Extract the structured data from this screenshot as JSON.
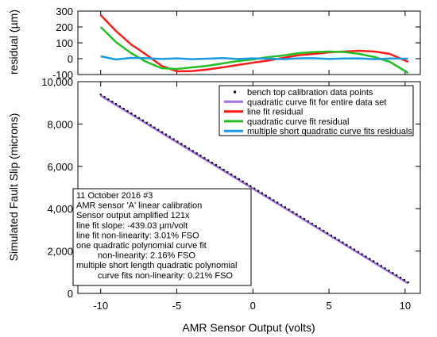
{
  "chart_data": [
    {
      "id": "residual",
      "type": "line",
      "ylabel": "residual (µm)",
      "xlim": [
        -11.5,
        11
      ],
      "ylim": [
        -100,
        300
      ],
      "yticks": [
        -100,
        0,
        100,
        200,
        300
      ],
      "grid": false,
      "series": [
        {
          "name": "line fit residual",
          "color": "#ff1a1a",
          "x": [
            -10,
            -9,
            -8,
            -7,
            -6,
            -5,
            -4,
            -3,
            -2,
            -1,
            0,
            1,
            2,
            3,
            4,
            5,
            6,
            7,
            8,
            9,
            10.2
          ],
          "y": [
            275,
            175,
            90,
            25,
            -45,
            -80,
            -78,
            -68,
            -55,
            -40,
            -25,
            -12,
            5,
            22,
            30,
            40,
            45,
            50,
            45,
            30,
            -20
          ]
        },
        {
          "name": "quadratic curve fit residual",
          "color": "#22c022",
          "x": [
            -10,
            -9,
            -8,
            -7,
            -6,
            -5,
            -4,
            -3,
            -2,
            -1,
            0,
            1,
            2,
            3,
            4,
            5,
            6,
            7,
            8,
            9,
            10.2
          ],
          "y": [
            200,
            105,
            35,
            -20,
            -60,
            -65,
            -55,
            -45,
            -30,
            -15,
            -5,
            10,
            20,
            35,
            42,
            45,
            42,
            30,
            10,
            -20,
            -90
          ]
        },
        {
          "name": "multiple short quadratic curve fits residuals",
          "color": "#1a9ae0",
          "x": [
            -10,
            -9,
            -8,
            -7,
            -6,
            -5,
            -4,
            -3,
            -2,
            -1,
            0,
            1,
            2,
            3,
            4,
            5,
            6,
            7,
            8,
            9,
            10.2
          ],
          "y": [
            15,
            -5,
            5,
            3,
            -2,
            2,
            -3,
            0,
            4,
            -2,
            2,
            0,
            -3,
            2,
            3,
            -2,
            1,
            2,
            -3,
            1,
            0
          ]
        }
      ]
    },
    {
      "id": "main",
      "type": "line",
      "xlabel": "AMR Sensor Output (volts)",
      "ylabel": "Simulated Fault Slip (microns)",
      "xlim": [
        -11.5,
        11
      ],
      "ylim": [
        0,
        10000
      ],
      "xticks": [
        -10,
        -5,
        0,
        5,
        10
      ],
      "yticks": [
        0,
        2000,
        4000,
        6000,
        8000,
        10000
      ],
      "grid": false,
      "legend_position": "top-right",
      "series": [
        {
          "name": "bench top calibration data points",
          "color": "#000000",
          "style": "dots",
          "x_range": [
            -10,
            10.2
          ],
          "fit": {
            "slope": -439.03,
            "intercept": 5000
          }
        },
        {
          "name": "quadratic curve fit for entire data set",
          "color": "#a06fe0",
          "style": "line",
          "x_range": [
            -10,
            10.2
          ],
          "fit": {
            "slope": -439.03,
            "intercept": 4950
          }
        },
        {
          "name": "line fit residual",
          "color": "#ff1a1a",
          "style": "legend-only"
        },
        {
          "name": "quadratic curve fit residual",
          "color": "#22c022",
          "style": "legend-only"
        },
        {
          "name": "multiple short quadratic curve fits residuals",
          "color": "#1a9ae0",
          "style": "legend-only"
        }
      ],
      "annotation_lines": [
        "11 October 2016 #3",
        "AMR sensor 'A' linear calibration",
        "Sensor output amplified 121x",
        "line fit slope: -439.03 µm/volt",
        "line fit non-linearity: 3.01% FSO",
        "one quadratic polynomial curve fit",
        "non-linearity: 2.16% FSO",
        "multiple short length quadratic polynomial",
        "curve fits non-linearity: 0.21% FSO"
      ]
    }
  ]
}
